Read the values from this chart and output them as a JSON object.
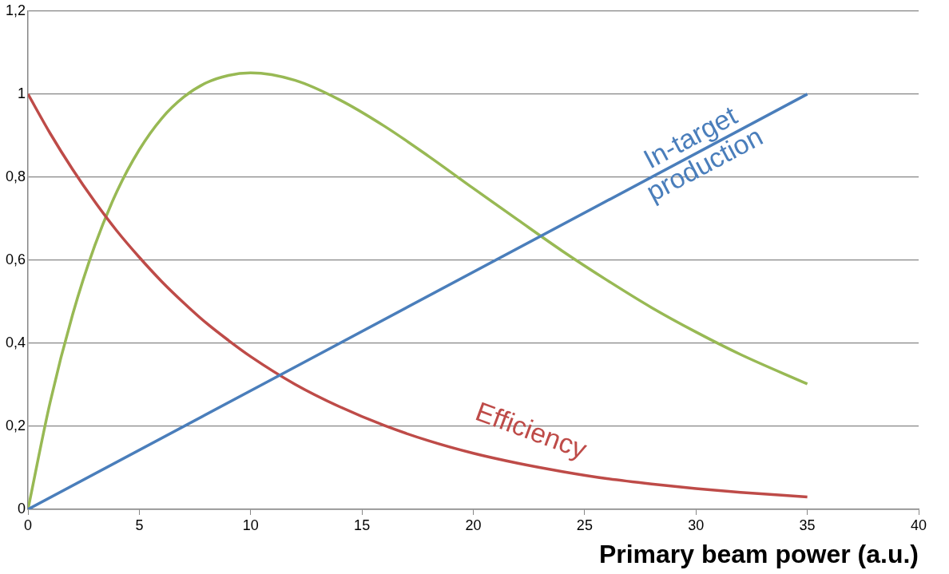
{
  "chart_data": {
    "type": "line",
    "xlabel": "Primary beam power (a.u.)",
    "xlim": [
      0,
      40
    ],
    "xticks": [
      0,
      5,
      10,
      15,
      20,
      25,
      30,
      35,
      40
    ],
    "ylim": [
      0,
      1.2
    ],
    "yticks": [
      0,
      {
        "value": 0.2,
        "label": "0,2"
      },
      {
        "value": 0.4,
        "label": "0,4"
      },
      {
        "value": 0.6,
        "label": "0,6"
      },
      {
        "value": 0.8,
        "label": "0,8"
      },
      1,
      {
        "value": 1.2,
        "label": "1,2"
      }
    ],
    "grid": "y",
    "legend": false,
    "marker": "none",
    "line_style": "solid",
    "series": [
      {
        "name": "In-target production",
        "color": "#4a7ebb",
        "x": [
          0,
          35
        ],
        "values": [
          0,
          1
        ]
      },
      {
        "name": "Efficiency",
        "color": "#be4b48",
        "x": [
          0,
          1,
          2,
          3,
          4,
          5,
          6,
          7,
          8,
          9,
          10,
          12,
          14,
          16,
          18,
          20,
          22,
          24,
          26,
          28,
          30,
          32,
          35
        ],
        "values": [
          1,
          0.905,
          0.819,
          0.741,
          0.67,
          0.607,
          0.549,
          0.497,
          0.449,
          0.407,
          0.368,
          0.301,
          0.247,
          0.202,
          0.165,
          0.135,
          0.111,
          0.091,
          0.074,
          0.061,
          0.05,
          0.041,
          0.03
        ]
      },
      {
        "color": "#98b954",
        "x": [
          0,
          1,
          2,
          3,
          4,
          5,
          6,
          7,
          8,
          9,
          10,
          12,
          14,
          16,
          18,
          20,
          22,
          24,
          26,
          28,
          30,
          32,
          35
        ],
        "values": [
          0,
          0.259,
          0.468,
          0.635,
          0.766,
          0.866,
          0.941,
          0.993,
          1.027,
          1.045,
          1.051,
          1.033,
          0.986,
          0.923,
          0.85,
          0.773,
          0.697,
          0.622,
          0.552,
          0.486,
          0.427,
          0.373,
          0.302
        ]
      }
    ]
  }
}
